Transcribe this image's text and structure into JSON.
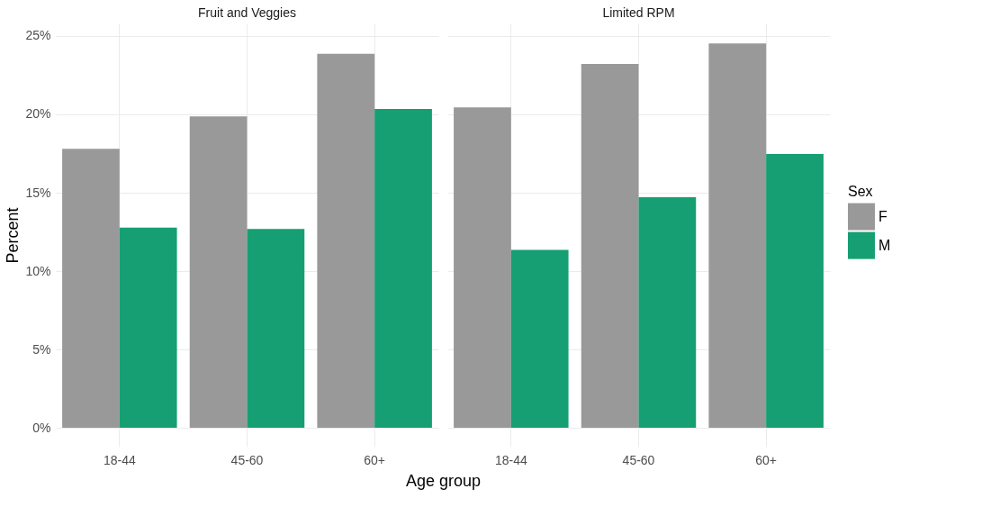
{
  "chart_data": [
    {
      "type": "bar",
      "title": "Fruit and Veggies",
      "xlabel": "Age group",
      "ylabel": "Percent",
      "categories": [
        "18-44",
        "45-60",
        "60+"
      ],
      "series": [
        {
          "color": "#999999",
          "values": [
            17.8,
            19.87,
            23.86
          ]
        },
        {
          "color": "#159f72",
          "values": [
            12.77,
            12.69,
            20.34
          ]
        }
      ],
      "ylim": [
        -1.2,
        25.8
      ],
      "yticks": [
        {
          "value": 0,
          "label": "0%"
        },
        {
          "value": 5,
          "label": "5%"
        },
        {
          "value": 10,
          "label": "10%"
        },
        {
          "value": 15,
          "label": "15%"
        },
        {
          "value": 20,
          "label": "20%"
        },
        {
          "value": 25,
          "label": "25%"
        }
      ],
      "grid": true
    },
    {
      "type": "bar",
      "title": "Limited RPM",
      "legend_title": "Sex",
      "categories": [
        "18-44",
        "45-60",
        "60+"
      ],
      "series": [
        {
          "name": "F",
          "color": "#999999",
          "values": [
            20.45,
            23.21,
            24.52
          ]
        },
        {
          "name": "M",
          "color": "#159f72",
          "values": [
            11.35,
            14.71,
            17.47
          ]
        }
      ],
      "ylim": [
        -1.2,
        25.8
      ],
      "yticks": [
        0,
        5,
        10,
        15,
        20,
        25
      ],
      "grid": true,
      "tick_labels": "x",
      "legend": "right"
    }
  ]
}
